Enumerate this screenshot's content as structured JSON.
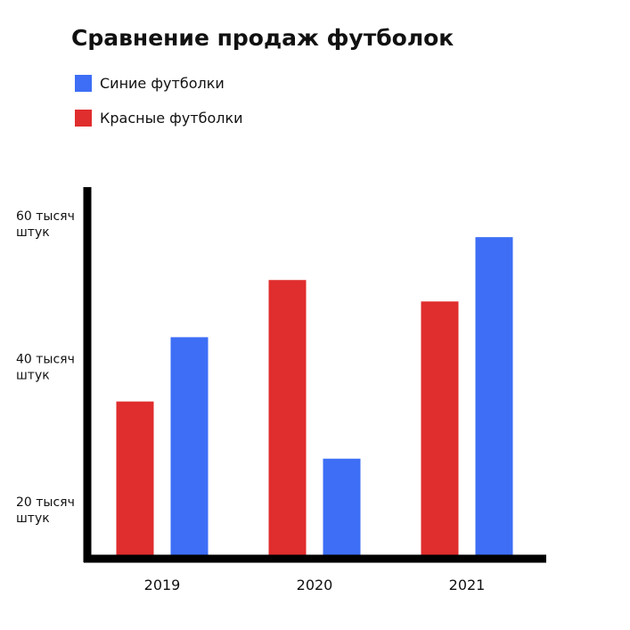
{
  "chart_data": {
    "type": "bar",
    "title": "Сравнение продаж футболок",
    "xlabel": "",
    "ylabel": "",
    "categories": [
      "2019",
      "2020",
      "2021"
    ],
    "series": [
      {
        "name": "Красные футболки",
        "color": "#e02d2d",
        "values": [
          35000,
          52000,
          49000
        ]
      },
      {
        "name": "Синие футболки",
        "color": "#3d6ef5",
        "values": [
          44000,
          27000,
          58000
        ]
      }
    ],
    "legend_order": [
      1,
      0
    ],
    "legend_position": "top-left",
    "y_ticks": [
      {
        "value": 20000,
        "line1": "20 тысяч",
        "line2": "штук"
      },
      {
        "value": 40000,
        "line1": "40 тысяч",
        "line2": "штук"
      },
      {
        "value": 60000,
        "line1": "60 тысяч",
        "line2": "штук"
      }
    ],
    "ylim": [
      13000,
      65000
    ],
    "grid": false
  }
}
